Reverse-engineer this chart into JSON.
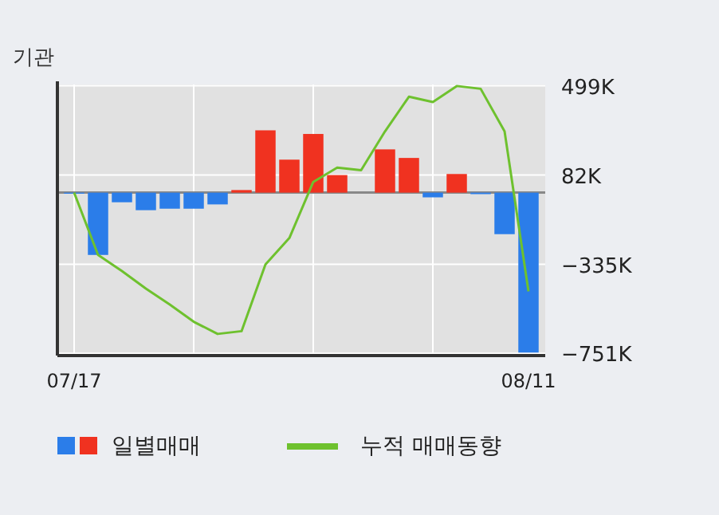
{
  "chart_data": {
    "type": "bar",
    "title": "기관",
    "categories": [
      "07/17",
      null,
      null,
      null,
      null,
      null,
      null,
      null,
      null,
      null,
      null,
      null,
      null,
      null,
      null,
      null,
      null,
      null,
      null,
      "08/11"
    ],
    "series": [
      {
        "name": "일별매매",
        "colors": [
          "#2b7de9",
          "#2b7de9",
          "#2b7de9",
          "#2b7de9",
          "#2b7de9",
          "#2b7de9",
          "#2b7de9",
          "#f03220",
          "#f03220",
          "#f03220",
          "#f03220",
          "#f03220",
          "#f03220",
          "#f03220",
          "#f03220",
          "#2b7de9",
          "#f03220",
          "#2b7de9",
          "#2b7de9",
          "#2b7de9"
        ],
        "values": [
          -5000,
          -291000,
          -45000,
          -82000,
          -75000,
          -75000,
          -55000,
          12000,
          291000,
          154000,
          274000,
          82000,
          0,
          202000,
          162000,
          -22000,
          87000,
          -7000,
          -194000,
          -747000
        ]
      },
      {
        "name": "누적 매매동향",
        "type": "line",
        "color": "#6ec12e",
        "values": [
          0,
          -291000,
          -366000,
          -448000,
          -523000,
          -603000,
          -660000,
          -647000,
          -336000,
          -212000,
          50000,
          117000,
          105000,
          286000,
          448000,
          423000,
          498000,
          485000,
          286000,
          -461000
        ]
      }
    ],
    "ylim": [
      -761000,
      505000
    ],
    "yticks": [
      {
        "value": 499000,
        "label": "499K"
      },
      {
        "value": 82000,
        "label": "82K"
      },
      {
        "value": -335000,
        "label": "−335K"
      },
      {
        "value": -751000,
        "label": "−751K"
      }
    ],
    "grid": true,
    "legend": "bottom"
  }
}
